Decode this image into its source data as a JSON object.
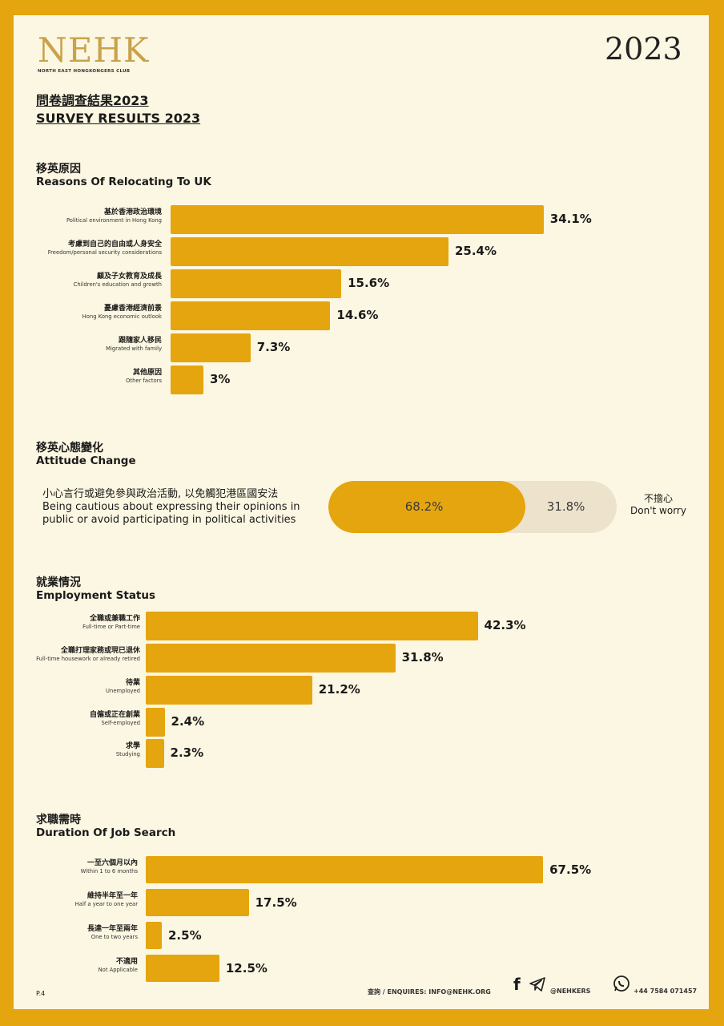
{
  "header": {
    "logo": "NEHK",
    "logo_sub": "NORTH EAST HONGKONGERS CLUB",
    "year": "2023",
    "title_zh": "問卷調查結果2023",
    "title_en": "SURVEY RESULTS 2023"
  },
  "sections": {
    "reasons": {
      "title_zh": "移英原因",
      "title_en": "Reasons Of Relocating To UK"
    },
    "attitude": {
      "title_zh": "移英心態變化",
      "title_en": "Attitude Change",
      "left_zh": "小心言行或避免參與政治活動, 以免觸犯港區國安法",
      "left_en": "Being cautious about expressing their opinions in public or avoid participating in political activities",
      "right_zh": "不擔心",
      "right_en": "Don't worry"
    },
    "employment": {
      "title_zh": "就業情況",
      "title_en": "Employment Status"
    },
    "jobsearch": {
      "title_zh": "求職需時",
      "title_en": "Duration Of Job Search"
    }
  },
  "chart_data": [
    {
      "type": "bar",
      "orientation": "horizontal",
      "title": "Reasons Of Relocating To UK",
      "categories": [
        {
          "zh": "基於香港政治環境",
          "en": "Political environment in Hong Kong"
        },
        {
          "zh": "考慮到自己的自由或人身安全",
          "en": "Freedom/personal security considerations"
        },
        {
          "zh": "顧及子女教育及成長",
          "en": "Children's education and growth"
        },
        {
          "zh": "憂慮香港經濟前景",
          "en": "Hong Kong economic outlook"
        },
        {
          "zh": "跟隨家人移民",
          "en": "Migrated with family"
        },
        {
          "zh": "其他原因",
          "en": "Other factors"
        }
      ],
      "values": [
        34.1,
        25.4,
        15.6,
        14.6,
        7.3,
        3
      ],
      "labels": [
        "34.1%",
        "25.4%",
        "15.6%",
        "14.6%",
        "7.3%",
        "3%"
      ]
    },
    {
      "type": "bar",
      "orientation": "horizontal",
      "stacked": true,
      "title": "Attitude Change",
      "values": [
        68.2,
        31.8
      ],
      "labels": [
        "68.2%",
        "31.8%"
      ]
    },
    {
      "type": "bar",
      "orientation": "horizontal",
      "title": "Employment Status",
      "categories": [
        {
          "zh": "全職或兼職工作",
          "en": "Full-time or Part-time"
        },
        {
          "zh": "全職打理家務或現已退休",
          "en": "Full-time housework or already retired"
        },
        {
          "zh": "待業",
          "en": "Unemployed"
        },
        {
          "zh": "自僱或正在創業",
          "en": "Self-employed"
        },
        {
          "zh": "求學",
          "en": "Studying"
        }
      ],
      "values": [
        42.3,
        31.8,
        21.2,
        2.4,
        2.3
      ],
      "labels": [
        "42.3%",
        "31.8%",
        "21.2%",
        "2.4%",
        "2.3%"
      ]
    },
    {
      "type": "bar",
      "orientation": "horizontal",
      "title": "Duration Of Job Search",
      "categories": [
        {
          "zh": "一至六個月以內",
          "en": "Within 1 to 6 months"
        },
        {
          "zh": "維持半年至一年",
          "en": "Half a year to one year"
        },
        {
          "zh": "長達一年至兩年",
          "en": "One to two years"
        },
        {
          "zh": "不適用",
          "en": "Not Applicable"
        }
      ],
      "values": [
        67.5,
        17.5,
        2.5,
        12.5
      ],
      "labels": [
        "67.5%",
        "17.5%",
        "2.5%",
        "12.5%"
      ]
    }
  ],
  "footer": {
    "page": "P.4",
    "enquiries": "查詢 / ENQUIRES:  INFO@NEHK.ORG",
    "social": "@NEHKERS",
    "phone": "+44 7584 071457"
  },
  "colors": {
    "border": "#E5A50E",
    "background": "#FCF7E2",
    "bar": "#E5A50E",
    "pill_rest": "#EDE2CC"
  }
}
